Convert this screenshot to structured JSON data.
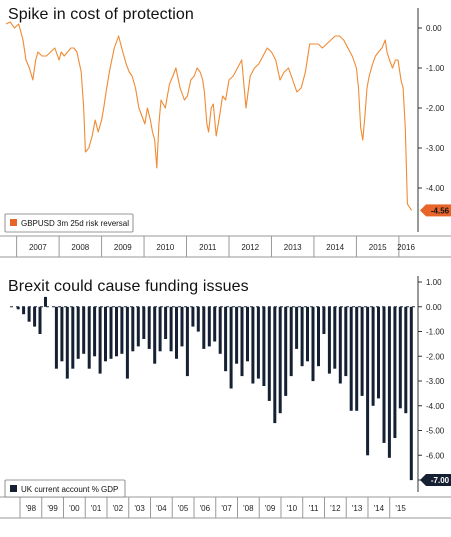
{
  "chart_data": [
    {
      "type": "line",
      "title": "Spike in cost of protection",
      "color": "#f08a33",
      "legend_swatch_color": "#e8652a",
      "legend_position": "bottom-left",
      "grid": false,
      "ylim": [
        -5.0,
        0.5
      ],
      "yticks": [
        0.0,
        -1.0,
        -2.0,
        -3.0,
        -4.0
      ],
      "ytick_labels": [
        "0.00",
        "-1.00",
        "-2.00",
        "-3.00",
        "-4.00"
      ],
      "x_labels": [
        "2007",
        "2008",
        "2009",
        "2010",
        "2011",
        "2012",
        "2013",
        "2014",
        "2015",
        "2016"
      ],
      "xlim": [
        2006.75,
        2016.45
      ],
      "last_value_label": "-4.56",
      "series": [
        {
          "name": "GBPUSD 3m 25d risk reversal",
          "x": [
            2006.75,
            2006.85,
            2006.95,
            2007.05,
            2007.15,
            2007.22,
            2007.3,
            2007.38,
            2007.45,
            2007.5,
            2007.6,
            2007.7,
            2007.8,
            2007.9,
            2008.0,
            2008.05,
            2008.12,
            2008.2,
            2008.28,
            2008.35,
            2008.42,
            2008.48,
            2008.52,
            2008.58,
            2008.62,
            2008.7,
            2008.78,
            2008.85,
            2008.92,
            2009.0,
            2009.05,
            2009.12,
            2009.2,
            2009.3,
            2009.4,
            2009.5,
            2009.58,
            2009.65,
            2009.72,
            2009.8,
            2009.88,
            2009.95,
            2010.02,
            2010.08,
            2010.15,
            2010.2,
            2010.25,
            2010.3,
            2010.35,
            2010.4,
            2010.5,
            2010.6,
            2010.68,
            2010.75,
            2010.85,
            2010.95,
            2011.02,
            2011.1,
            2011.18,
            2011.25,
            2011.32,
            2011.38,
            2011.42,
            2011.48,
            2011.52,
            2011.58,
            2011.63,
            2011.7,
            2011.78,
            2011.85,
            2011.92,
            2012.0,
            2012.1,
            2012.2,
            2012.3,
            2012.4,
            2012.5,
            2012.6,
            2012.7,
            2012.8,
            2012.9,
            2013.0,
            2013.1,
            2013.2,
            2013.3,
            2013.4,
            2013.5,
            2013.6,
            2013.7,
            2013.8,
            2013.9,
            2014.0,
            2014.1,
            2014.2,
            2014.3,
            2014.4,
            2014.5,
            2014.6,
            2014.7,
            2014.8,
            2014.9,
            2015.0,
            2015.05,
            2015.1,
            2015.15,
            2015.2,
            2015.25,
            2015.3,
            2015.38,
            2015.45,
            2015.52,
            2015.6,
            2015.68,
            2015.72,
            2015.78,
            2015.85,
            2015.92,
            2015.98,
            2016.05,
            2016.1,
            2016.15,
            2016.2,
            2016.3
          ],
          "y": [
            0.1,
            0.15,
            0.0,
            0.1,
            -0.3,
            -0.8,
            -1.0,
            -1.3,
            -0.8,
            -0.6,
            -0.7,
            -0.7,
            -0.6,
            -0.5,
            -0.8,
            -0.6,
            -0.7,
            -0.6,
            -0.5,
            -0.5,
            -0.6,
            -0.9,
            -1.1,
            -2.0,
            -3.1,
            -3.0,
            -2.7,
            -2.3,
            -2.6,
            -2.3,
            -2.0,
            -1.5,
            -1.0,
            -0.5,
            -0.2,
            -0.6,
            -0.9,
            -1.1,
            -1.2,
            -1.5,
            -2.0,
            -2.2,
            -2.4,
            -2.0,
            -2.3,
            -2.6,
            -2.8,
            -3.5,
            -2.4,
            -1.8,
            -2.0,
            -1.4,
            -1.2,
            -1.0,
            -1.5,
            -1.8,
            -1.7,
            -1.3,
            -1.2,
            -1.0,
            -1.1,
            -1.3,
            -1.6,
            -2.4,
            -2.6,
            -2.0,
            -1.9,
            -2.7,
            -2.2,
            -1.7,
            -1.8,
            -1.3,
            -1.2,
            -1.0,
            -0.8,
            -2.0,
            -1.2,
            -1.0,
            -0.9,
            -0.7,
            -0.5,
            -0.6,
            -0.8,
            -1.3,
            -1.1,
            -1.0,
            -1.3,
            -1.6,
            -1.5,
            -1.1,
            -0.4,
            -0.4,
            -0.4,
            -0.5,
            -0.4,
            -0.3,
            -0.2,
            -0.2,
            -0.3,
            -0.5,
            -0.7,
            -1.0,
            -1.5,
            -2.5,
            -2.8,
            -2.2,
            -1.5,
            -1.2,
            -0.9,
            -0.7,
            -0.6,
            -0.5,
            -0.3,
            -0.6,
            -0.8,
            -1.0,
            -0.8,
            -0.8,
            -1.3,
            -1.5,
            -2.5,
            -4.4,
            -4.56
          ]
        }
      ]
    },
    {
      "type": "bar",
      "title": "Brexit could cause funding issues",
      "color": "#152133",
      "legend_position": "bottom-left",
      "grid": false,
      "ylim": [
        -7.0,
        1.0
      ],
      "yticks": [
        1.0,
        0.0,
        -1.0,
        -2.0,
        -3.0,
        -4.0,
        -5.0,
        -6.0,
        -7.0
      ],
      "ytick_labels": [
        "1.00",
        "0.00",
        "-1.00",
        "-2.00",
        "-3.00",
        "-4.00",
        "-5.00",
        "-6.00",
        "-7.00"
      ],
      "x_labels": [
        "'98",
        "'99",
        "'00",
        "'01",
        "'02",
        "'03",
        "'04",
        "'05",
        "'06",
        "'07",
        "'08",
        "'09",
        "'10",
        "'11",
        "'12",
        "'13",
        "'14",
        "'15"
      ],
      "last_value_label": "-7.00",
      "series": [
        {
          "name": "UK current account % GDP",
          "values": [
            0.0,
            -0.1,
            -0.3,
            -0.6,
            -0.8,
            -1.1,
            0.4,
            0.0,
            -2.5,
            -2.2,
            -2.9,
            -2.5,
            -2.1,
            -1.9,
            -2.5,
            -2.0,
            -2.7,
            -2.2,
            -2.1,
            -2.0,
            -1.9,
            -2.9,
            -1.8,
            -1.6,
            -1.3,
            -1.7,
            -2.3,
            -1.8,
            -1.3,
            -1.8,
            -2.1,
            -1.6,
            -2.8,
            -0.8,
            -1.0,
            -1.7,
            -1.6,
            -1.4,
            -1.9,
            -2.6,
            -3.3,
            -2.3,
            -2.8,
            -2.2,
            -3.1,
            -2.9,
            -3.2,
            -3.8,
            -4.7,
            -4.3,
            -3.6,
            -2.8,
            -1.7,
            -2.4,
            -2.2,
            -3.0,
            -2.4,
            -1.1,
            -2.7,
            -2.5,
            -3.1,
            -2.8,
            -4.2,
            -4.2,
            -3.6,
            -6.0,
            -4.0,
            -3.7,
            -5.5,
            -6.1,
            -5.3,
            -4.1,
            -4.3,
            -7.0
          ]
        }
      ]
    }
  ]
}
